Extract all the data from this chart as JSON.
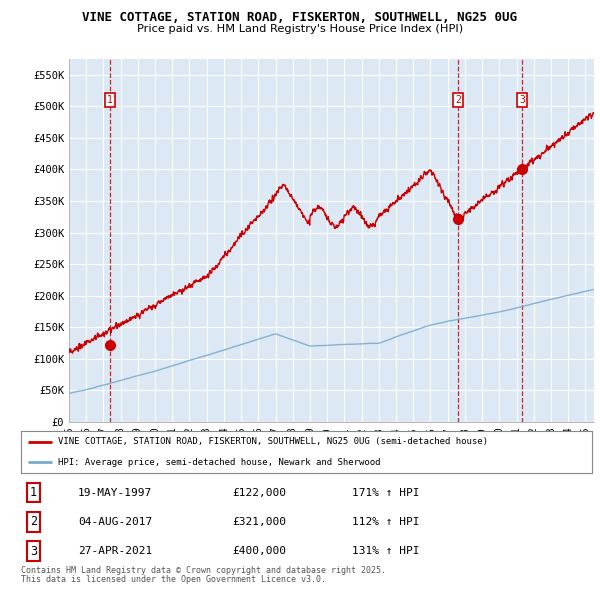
{
  "title1": "VINE COTTAGE, STATION ROAD, FISKERTON, SOUTHWELL, NG25 0UG",
  "title2": "Price paid vs. HM Land Registry's House Price Index (HPI)",
  "plot_bg_color": "#dce9f5",
  "ylim": [
    0,
    575000
  ],
  "yticks": [
    0,
    50000,
    100000,
    150000,
    200000,
    250000,
    300000,
    350000,
    400000,
    450000,
    500000,
    550000
  ],
  "ytick_labels": [
    "£0",
    "£50K",
    "£100K",
    "£150K",
    "£200K",
    "£250K",
    "£300K",
    "£350K",
    "£400K",
    "£450K",
    "£500K",
    "£550K"
  ],
  "red_line_color": "#cc0000",
  "blue_line_color": "#7aabcf",
  "vline_color": "#cc0000",
  "legend1": "VINE COTTAGE, STATION ROAD, FISKERTON, SOUTHWELL, NG25 0UG (semi-detached house)",
  "legend2": "HPI: Average price, semi-detached house, Newark and Sherwood",
  "sale_years": [
    1997.38,
    2017.59,
    2021.32
  ],
  "sale_prices": [
    122000,
    321000,
    400000
  ],
  "sale_labels": [
    "1",
    "2",
    "3"
  ],
  "sale_dates": [
    "19-MAY-1997",
    "04-AUG-2017",
    "27-APR-2021"
  ],
  "sale_pcts": [
    "171% ↑ HPI",
    "112% ↑ HPI",
    "131% ↑ HPI"
  ],
  "footer1": "Contains HM Land Registry data © Crown copyright and database right 2025.",
  "footer2": "This data is licensed under the Open Government Licence v3.0.",
  "xmin": 1995,
  "xmax": 2025.5
}
